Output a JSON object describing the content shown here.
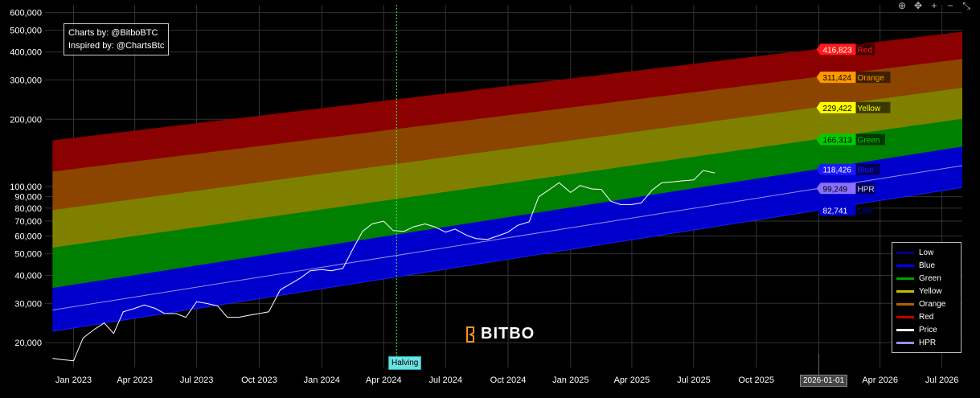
{
  "credits": {
    "line1": "Charts by: @BitboBTC",
    "line2": "Inspired by: @ChartsBtc"
  },
  "brand": {
    "name": "BITBO"
  },
  "halving_label": "Halving",
  "crosshair_date": "2026-01-01",
  "toolbar": [
    {
      "icon": "zoom-icon",
      "glyph": "⊕"
    },
    {
      "icon": "pan-icon",
      "glyph": "✥"
    },
    {
      "icon": "zoom-in-icon",
      "glyph": "+"
    },
    {
      "icon": "zoom-out-icon",
      "glyph": "−"
    },
    {
      "icon": "reset-axes-icon",
      "glyph": "⤡"
    }
  ],
  "chart_data": {
    "type": "area",
    "y_scale": "log",
    "ylim": [
      15500,
      650000
    ],
    "xlim": [
      "2022-11-20",
      "2026-07-31"
    ],
    "y_ticks": [
      20000,
      30000,
      40000,
      50000,
      60000,
      70000,
      80000,
      90000,
      100000,
      200000,
      300000,
      400000,
      500000,
      600000
    ],
    "y_tick_labels": [
      "20,000",
      "30,000",
      "40,000",
      "50,000",
      "60,000",
      "70,000",
      "80,000",
      "90,000",
      "100,000",
      "200,000",
      "300,000",
      "400,000",
      "500,000",
      "600,000"
    ],
    "x_ticks": [
      "2023-01-01",
      "2023-04-01",
      "2023-07-01",
      "2023-10-01",
      "2024-01-01",
      "2024-04-01",
      "2024-07-01",
      "2024-10-01",
      "2025-01-01",
      "2025-04-01",
      "2025-07-01",
      "2025-10-01",
      "2026-01-01",
      "2026-04-01",
      "2026-07-01"
    ],
    "x_tick_labels": [
      "Jan 2023",
      "Apr 2023",
      "Jul 2023",
      "Oct 2023",
      "Jan 2024",
      "Apr 2024",
      "Jul 2024",
      "Oct 2024",
      "Jan 2025",
      "Apr 2025",
      "Jul 2025",
      "Oct 2025",
      "2026-01-01",
      "Apr 2026",
      "Jul 2026"
    ],
    "grid": true,
    "legend_placement": "bottom-right",
    "halving_date": "2024-04-20",
    "bands_x": [
      "2022-12-01",
      "2026-07-31"
    ],
    "bands": [
      {
        "name": "Low",
        "color": "#00008b",
        "start": 22500,
        "end": 99000
      },
      {
        "name": "Blue",
        "color": "#0000cd",
        "start": 35000,
        "end": 150000
      },
      {
        "name": "Green",
        "color": "#008000",
        "start": 53000,
        "end": 200000
      },
      {
        "name": "Yellow",
        "color": "#808000",
        "start": 78000,
        "end": 275000
      },
      {
        "name": "Orange",
        "color": "#8b4500",
        "start": 116000,
        "end": 370000
      },
      {
        "name": "Red",
        "color": "#8b0000",
        "start": 160000,
        "end": 490000
      }
    ],
    "hpr": {
      "name": "HPR",
      "color": "#9a8fe0",
      "start": 28000,
      "end": 124000
    },
    "price": {
      "name": "Price",
      "color": "#ffffff",
      "x": [
        "2022-12-01",
        "2022-12-15",
        "2023-01-01",
        "2023-01-15",
        "2023-02-01",
        "2023-02-15",
        "2023-03-01",
        "2023-03-15",
        "2023-04-01",
        "2023-04-15",
        "2023-05-01",
        "2023-05-15",
        "2023-06-01",
        "2023-06-15",
        "2023-07-01",
        "2023-07-15",
        "2023-08-01",
        "2023-08-15",
        "2023-09-01",
        "2023-09-15",
        "2023-10-01",
        "2023-10-15",
        "2023-11-01",
        "2023-11-15",
        "2023-12-01",
        "2023-12-15",
        "2024-01-01",
        "2024-01-15",
        "2024-02-01",
        "2024-02-15",
        "2024-03-01",
        "2024-03-15",
        "2024-04-01",
        "2024-04-15",
        "2024-05-01",
        "2024-05-15",
        "2024-06-01",
        "2024-06-15",
        "2024-07-01",
        "2024-07-15",
        "2024-08-01",
        "2024-08-15",
        "2024-09-01",
        "2024-09-15",
        "2024-10-01",
        "2024-10-15",
        "2024-11-01",
        "2024-11-15",
        "2024-12-01",
        "2024-12-15",
        "2025-01-01",
        "2025-01-15",
        "2025-02-01",
        "2025-02-15",
        "2025-03-01",
        "2025-03-15",
        "2025-04-01",
        "2025-04-15",
        "2025-05-01",
        "2025-05-15",
        "2025-06-01",
        "2025-06-15",
        "2025-07-01",
        "2025-07-15",
        "2025-08-01"
      ],
      "y": [
        17000,
        16800,
        16600,
        21000,
        23000,
        24500,
        22000,
        27500,
        28500,
        29500,
        28500,
        27000,
        27000,
        26000,
        30500,
        30000,
        29200,
        26000,
        26000,
        26500,
        27000,
        27500,
        34500,
        36500,
        39000,
        42000,
        42500,
        42000,
        43000,
        52000,
        63000,
        68000,
        70000,
        63500,
        63000,
        66000,
        68000,
        66000,
        62500,
        64500,
        60500,
        58500,
        58000,
        60000,
        62500,
        67000,
        69500,
        90000,
        97000,
        104000,
        94000,
        101000,
        97500,
        97000,
        86000,
        83000,
        83000,
        84500,
        96500,
        104000,
        105000,
        106000,
        107000,
        118000,
        115000
      ]
    },
    "end_labels": [
      {
        "name": "Red",
        "value": "416,823",
        "color": "#ff1a1a",
        "text_color": "#ffffff"
      },
      {
        "name": "Orange",
        "value": "311,424",
        "color": "#ff9900",
        "text_color": "#000000"
      },
      {
        "name": "Yellow",
        "value": "229,422",
        "color": "#ffff00",
        "text_color": "#000000"
      },
      {
        "name": "Green",
        "value": "166,313",
        "color": "#00cc00",
        "text_color": "#000000"
      },
      {
        "name": "Blue",
        "value": "118,426",
        "color": "#1a1aff",
        "text_color": "#ffffff"
      },
      {
        "name": "HPR",
        "value": "99,249",
        "color": "#8a70ff",
        "text_color": "#000000"
      },
      {
        "name": "Low",
        "value": "82,741",
        "color": "#0000cc",
        "text_color": "#ffffff"
      }
    ],
    "legend": [
      {
        "name": "Low",
        "color": "#00008b"
      },
      {
        "name": "Blue",
        "color": "#0000ff"
      },
      {
        "name": "Green",
        "color": "#00a000"
      },
      {
        "name": "Yellow",
        "color": "#c0c000"
      },
      {
        "name": "Orange",
        "color": "#b06000"
      },
      {
        "name": "Red",
        "color": "#c00000"
      },
      {
        "name": "Price",
        "color": "#ffffff"
      },
      {
        "name": "HPR",
        "color": "#9a8fe0"
      }
    ]
  }
}
